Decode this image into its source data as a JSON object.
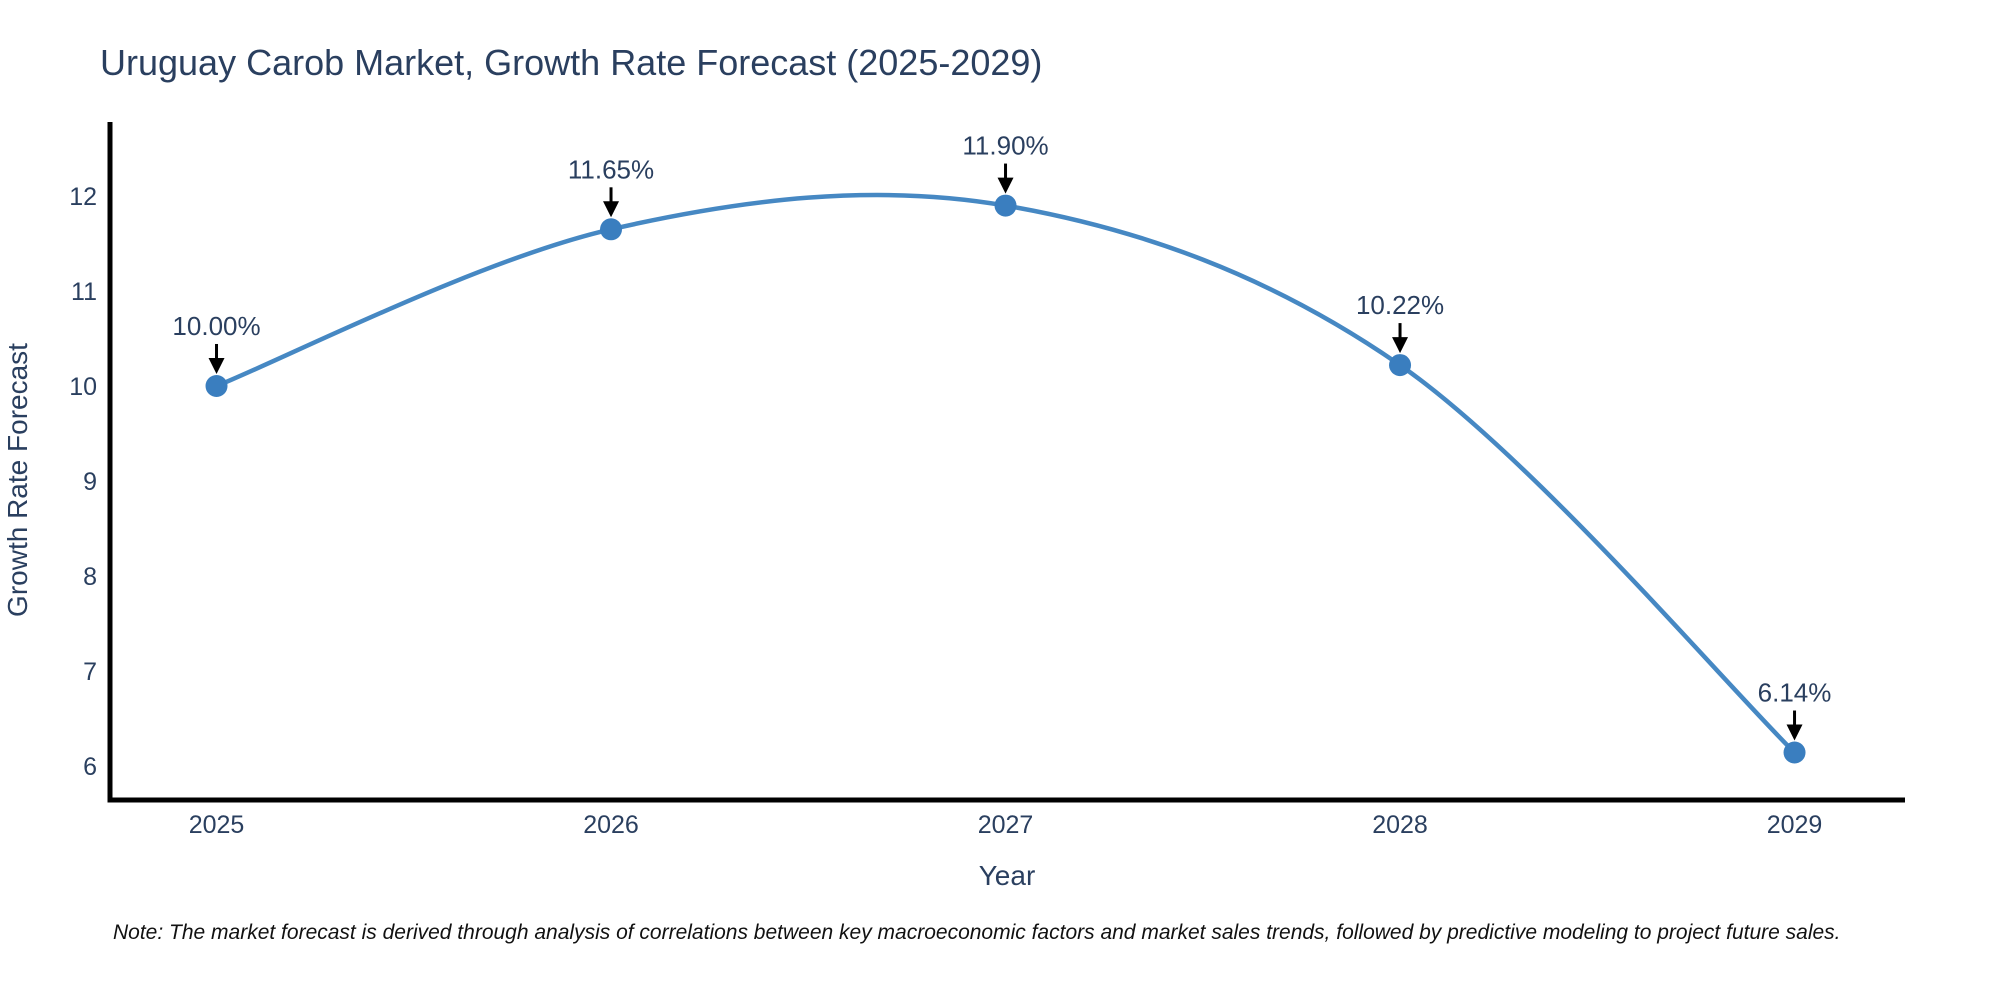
{
  "footnote": {
    "text": "Note: The market forecast is derived through analysis of correlations between key macroeconomic factors and market sales trends, followed by predictive modeling to project future sales."
  },
  "chart_data": {
    "type": "line",
    "line_shape": "spline",
    "title": "Uruguay Carob Market, Growth Rate Forecast (2025-2029)",
    "xlabel": "Year",
    "ylabel": "Growth Rate Forecast",
    "x": [
      2025,
      2026,
      2027,
      2028,
      2029
    ],
    "series": [
      {
        "name": "Growth Rate Forecast",
        "values": [
          10.0,
          11.65,
          11.9,
          10.22,
          6.14
        ]
      }
    ],
    "point_labels": [
      "10.00%",
      "11.65%",
      "11.90%",
      "10.22%",
      "6.14%"
    ],
    "yticks": [
      6,
      7,
      8,
      9,
      10,
      11,
      12
    ],
    "xticks": [
      2025,
      2026,
      2027,
      2028,
      2029
    ],
    "xlim": [
      2024.73,
      2029.28
    ],
    "ylim": [
      5.64,
      12.78
    ],
    "grid": false,
    "legend": "none",
    "annotations_have_arrows": true,
    "colors": {
      "line": "#4688c3",
      "marker": "#3a7ebf",
      "axis": "#000000",
      "arrow": "#000000",
      "text": "#2a3f5f"
    }
  }
}
